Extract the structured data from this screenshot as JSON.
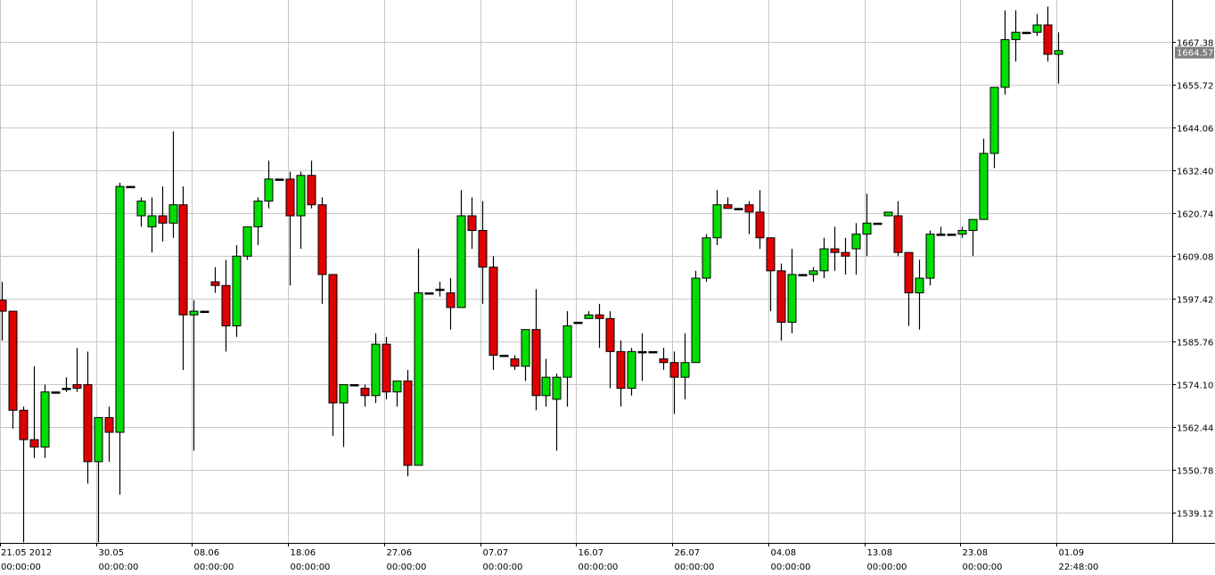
{
  "chart_data": {
    "type": "candlestick",
    "title": "",
    "xlabel": "",
    "ylabel": "",
    "grid": true,
    "ylim": [
      1533,
      1679
    ],
    "y_ticks": [
      "1539.12",
      "1550.78",
      "1562.44",
      "1574.10",
      "1585.76",
      "1597.42",
      "1609.08",
      "1620.74",
      "1632.40",
      "1644.06",
      "1655.72",
      "1667.38"
    ],
    "x_ticks": [
      {
        "date": "21.05 2012",
        "time": "00:00:00",
        "index": 0
      },
      {
        "date": "30.05",
        "time": "00:00:00",
        "index": 9
      },
      {
        "date": "08.06",
        "time": "00:00:00",
        "index": 18
      },
      {
        "date": "18.06",
        "time": "00:00:00",
        "index": 27
      },
      {
        "date": "27.06",
        "time": "00:00:00",
        "index": 36
      },
      {
        "date": "07.07",
        "time": "00:00:00",
        "index": 45
      },
      {
        "date": "16.07",
        "time": "00:00:00",
        "index": 54
      },
      {
        "date": "26.07",
        "time": "00:00:00",
        "index": 63
      },
      {
        "date": "04.08",
        "time": "00:00:00",
        "index": 72
      },
      {
        "date": "13.08",
        "time": "00:00:00",
        "index": 81
      },
      {
        "date": "23.08",
        "time": "00:00:00",
        "index": 90
      },
      {
        "date": "01.09",
        "time": "22:48:00",
        "index": 99
      }
    ],
    "current_price": "1664.57",
    "colors": {
      "up": "#00dd00",
      "down": "#e00000",
      "wick": "#000000",
      "grid": "#c8c8c8",
      "badge": "#808080"
    },
    "candles": [
      [
        1597,
        1602,
        1586,
        1594
      ],
      [
        1594,
        1594,
        1562,
        1567
      ],
      [
        1567,
        1568,
        1531,
        1559
      ],
      [
        1559,
        1579,
        1554,
        1557
      ],
      [
        1557,
        1574,
        1554,
        1572
      ],
      [
        1572,
        1572,
        1572,
        1572
      ],
      [
        1573,
        1576,
        1572,
        1573
      ],
      [
        1574,
        1584,
        1572,
        1573
      ],
      [
        1574,
        1583,
        1547,
        1553
      ],
      [
        1553,
        1565,
        1531,
        1565
      ],
      [
        1565,
        1568,
        1553,
        1561
      ],
      [
        1561,
        1629,
        1544,
        1628
      ],
      [
        1628,
        1628,
        1628,
        1628
      ],
      [
        1620,
        1625,
        1617,
        1624
      ],
      [
        1617,
        1625,
        1610,
        1620
      ],
      [
        1620,
        1628,
        1613,
        1618
      ],
      [
        1618,
        1643,
        1614,
        1623
      ],
      [
        1623,
        1628,
        1578,
        1593
      ],
      [
        1593,
        1597,
        1556,
        1594
      ],
      [
        1594,
        1594,
        1594,
        1594
      ],
      [
        1602,
        1606,
        1599,
        1601
      ],
      [
        1601,
        1608,
        1583,
        1590
      ],
      [
        1590,
        1612,
        1587,
        1609
      ],
      [
        1609,
        1616,
        1608,
        1617
      ],
      [
        1617,
        1625,
        1612,
        1624
      ],
      [
        1624,
        1635,
        1622,
        1630
      ],
      [
        1630,
        1630,
        1630,
        1630
      ],
      [
        1630,
        1632,
        1601,
        1620
      ],
      [
        1620,
        1632,
        1611,
        1631
      ],
      [
        1631,
        1635,
        1622,
        1623
      ],
      [
        1623,
        1625,
        1596,
        1604
      ],
      [
        1604,
        1604,
        1560,
        1569
      ],
      [
        1569,
        1574,
        1557,
        1574
      ],
      [
        1574,
        1574,
        1574,
        1574
      ],
      [
        1573,
        1574,
        1568,
        1571
      ],
      [
        1571,
        1588,
        1569,
        1585
      ],
      [
        1585,
        1587,
        1570,
        1572
      ],
      [
        1572,
        1575,
        1568,
        1575
      ],
      [
        1575,
        1578,
        1549,
        1552
      ],
      [
        1552,
        1611,
        1552,
        1599
      ],
      [
        1599,
        1599,
        1599,
        1599
      ],
      [
        1600,
        1602,
        1598,
        1600
      ],
      [
        1599,
        1603,
        1589,
        1595
      ],
      [
        1595,
        1627,
        1595,
        1620
      ],
      [
        1620,
        1625,
        1611,
        1616
      ],
      [
        1616,
        1624,
        1596,
        1606
      ],
      [
        1606,
        1609,
        1578,
        1582
      ],
      [
        1582,
        1582,
        1582,
        1582
      ],
      [
        1581,
        1582,
        1578,
        1579
      ],
      [
        1579,
        1589,
        1575,
        1589
      ],
      [
        1589,
        1600,
        1567,
        1571
      ],
      [
        1571,
        1581,
        1568,
        1576
      ],
      [
        1570,
        1577,
        1556,
        1576
      ],
      [
        1576,
        1594,
        1568,
        1590
      ],
      [
        1591,
        1591,
        1591,
        1591
      ],
      [
        1592,
        1594,
        1592,
        1593
      ],
      [
        1593,
        1596,
        1584,
        1592
      ],
      [
        1592,
        1594,
        1573,
        1583
      ],
      [
        1583,
        1586,
        1568,
        1573
      ],
      [
        1573,
        1584,
        1571,
        1583
      ],
      [
        1583,
        1588,
        1575,
        1583
      ],
      [
        1583,
        1583,
        1583,
        1583
      ],
      [
        1581,
        1584,
        1578,
        1580
      ],
      [
        1580,
        1583,
        1566,
        1576
      ],
      [
        1576,
        1588,
        1570,
        1580
      ],
      [
        1580,
        1605,
        1580,
        1603
      ],
      [
        1603,
        1615,
        1602,
        1614
      ],
      [
        1614,
        1627,
        1612,
        1623
      ],
      [
        1623,
        1625,
        1622,
        1622
      ],
      [
        1622,
        1622,
        1622,
        1622
      ],
      [
        1623,
        1624,
        1615,
        1621
      ],
      [
        1621,
        1627,
        1611,
        1614
      ],
      [
        1614,
        1614,
        1594,
        1605
      ],
      [
        1605,
        1607,
        1586,
        1591
      ],
      [
        1591,
        1611,
        1588,
        1604
      ],
      [
        1604,
        1604,
        1604,
        1604
      ],
      [
        1604,
        1606,
        1602,
        1605
      ],
      [
        1605,
        1614,
        1603,
        1611
      ],
      [
        1611,
        1617,
        1605,
        1610
      ],
      [
        1610,
        1614,
        1604,
        1609
      ],
      [
        1611,
        1618,
        1604,
        1615
      ],
      [
        1615,
        1626,
        1609,
        1618
      ],
      [
        1618,
        1618,
        1618,
        1618
      ],
      [
        1620,
        1621,
        1620,
        1621
      ],
      [
        1620,
        1624,
        1609,
        1610
      ],
      [
        1610,
        1610,
        1590,
        1599
      ],
      [
        1599,
        1608,
        1589,
        1603
      ],
      [
        1603,
        1616,
        1601,
        1615
      ],
      [
        1615,
        1617,
        1615,
        1615
      ],
      [
        1615,
        1615,
        1615,
        1615
      ],
      [
        1615,
        1617,
        1614,
        1616
      ],
      [
        1616,
        1619,
        1609,
        1619
      ],
      [
        1619,
        1641,
        1619,
        1637
      ],
      [
        1637,
        1655,
        1633,
        1655
      ],
      [
        1655,
        1676,
        1653,
        1668
      ],
      [
        1668,
        1676,
        1662,
        1670
      ],
      [
        1670,
        1670,
        1670,
        1670
      ],
      [
        1670,
        1675,
        1669,
        1672
      ],
      [
        1672,
        1677,
        1662,
        1664
      ],
      [
        1664,
        1670,
        1656,
        1665
      ]
    ]
  }
}
